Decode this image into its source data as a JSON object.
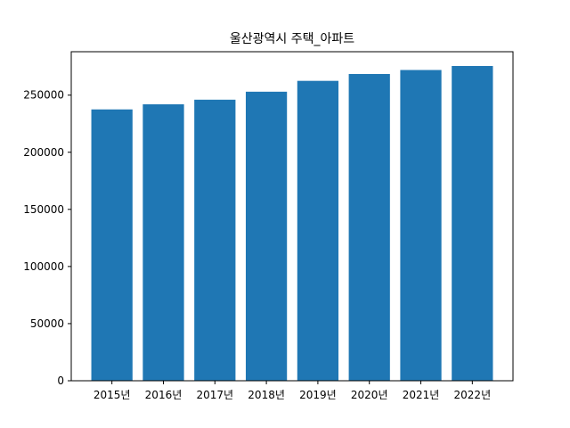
{
  "chart_data": {
    "type": "bar",
    "title": "울산광역시 주택_아파트",
    "xlabel": "",
    "ylabel": "",
    "categories": [
      "2015년",
      "2016년",
      "2017년",
      "2018년",
      "2019년",
      "2020년",
      "2021년",
      "2022년"
    ],
    "values": [
      237500,
      242000,
      246000,
      253000,
      262500,
      268500,
      272000,
      275500
    ],
    "ylim": [
      0,
      288000
    ],
    "yticks": [
      0,
      50000,
      100000,
      150000,
      200000,
      250000
    ],
    "bar_color": "#1f77b4",
    "grid": false
  }
}
